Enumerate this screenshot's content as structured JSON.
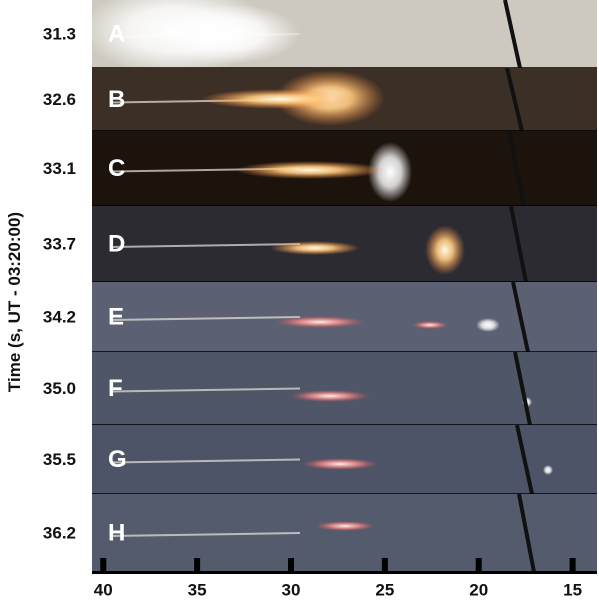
{
  "chart_data": {
    "type": "image-strips",
    "ylabel": "Time (s, UT - 03:20:00)",
    "panels": [
      {
        "label": "A",
        "time": "31.3"
      },
      {
        "label": "B",
        "time": "32.6"
      },
      {
        "label": "C",
        "time": "33.1"
      },
      {
        "label": "D",
        "time": "33.7"
      },
      {
        "label": "E",
        "time": "34.2"
      },
      {
        "label": "F",
        "time": "35.0"
      },
      {
        "label": "G",
        "time": "35.5"
      },
      {
        "label": "H",
        "time": "36.2"
      }
    ],
    "xlim": [
      40.6,
      13.7
    ],
    "xticks": [
      40,
      35,
      30,
      25,
      20,
      15
    ]
  }
}
